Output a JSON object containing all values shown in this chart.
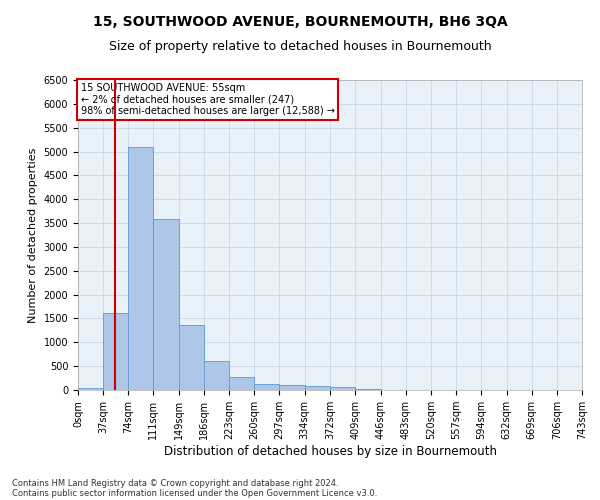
{
  "title1": "15, SOUTHWOOD AVENUE, BOURNEMOUTH, BH6 3QA",
  "title2": "Size of property relative to detached houses in Bournemouth",
  "xlabel": "Distribution of detached houses by size in Bournemouth",
  "ylabel": "Number of detached properties",
  "footnote1": "Contains HM Land Registry data © Crown copyright and database right 2024.",
  "footnote2": "Contains public sector information licensed under the Open Government Licence v3.0.",
  "annotation_line1": "15 SOUTHWOOD AVENUE: 55sqm",
  "annotation_line2": "← 2% of detached houses are smaller (247)",
  "annotation_line3": "98% of semi-detached houses are larger (12,588) →",
  "property_sqm": 55,
  "bin_edges": [
    0,
    37,
    74,
    111,
    149,
    186,
    223,
    260,
    297,
    334,
    372,
    409,
    446,
    483,
    520,
    557,
    594,
    632,
    669,
    706,
    743
  ],
  "bin_counts": [
    50,
    1620,
    5100,
    3580,
    1370,
    600,
    270,
    130,
    110,
    80,
    55,
    20,
    10,
    5,
    3,
    3,
    0,
    0,
    0,
    0
  ],
  "bar_color": "#aec6e8",
  "bar_edge_color": "#5b9bd5",
  "vline_color": "#cc0000",
  "annotation_box_edge_color": "#cc0000",
  "annotation_box_face_color": "#ffffff",
  "grid_color": "#c8d8ea",
  "background_color": "#e8f0f8",
  "ylim": [
    0,
    6500
  ],
  "yticks": [
    0,
    500,
    1000,
    1500,
    2000,
    2500,
    3000,
    3500,
    4000,
    4500,
    5000,
    5500,
    6000,
    6500
  ],
  "title1_fontsize": 10,
  "title2_fontsize": 9,
  "ylabel_fontsize": 8,
  "xlabel_fontsize": 8.5,
  "tick_fontsize": 7,
  "annot_fontsize": 7,
  "footnote_fontsize": 6
}
